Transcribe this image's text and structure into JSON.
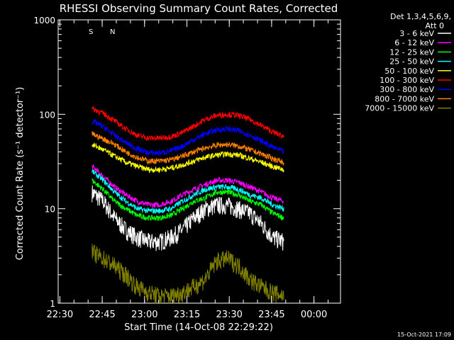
{
  "chart_data": {
    "type": "line",
    "title": "RHESSI Observing Summary Count Rates, Corrected",
    "xlabel": "Start Time (14-Oct-08 22:29:22)",
    "ylabel": "Corrected Count Rate (s⁻¹ detector⁻¹)",
    "x_unit": "minutes after 22:29:22",
    "xlim": [
      0,
      100
    ],
    "ylim": [
      1,
      1000
    ],
    "y_scale": "log",
    "x_ticks": [
      {
        "t": 0.6,
        "label": "22:30"
      },
      {
        "t": 15.6,
        "label": "22:45"
      },
      {
        "t": 30.6,
        "label": "23:00"
      },
      {
        "t": 45.6,
        "label": "23:15"
      },
      {
        "t": 60.6,
        "label": "23:30"
      },
      {
        "t": 75.6,
        "label": "23:45"
      },
      {
        "t": 90.6,
        "label": "00:00"
      }
    ],
    "y_ticks": [
      {
        "v": 1,
        "label": "1"
      },
      {
        "v": 10,
        "label": "10"
      },
      {
        "v": 100,
        "label": "100"
      },
      {
        "v": 1000,
        "label": "1000"
      }
    ],
    "legend_header": [
      "Det 1,3,4,5,6,9,",
      "Att 0"
    ],
    "legend_position": "right-outside",
    "x": [
      12,
      16,
      20,
      24,
      28,
      32,
      36,
      40,
      44,
      48,
      52,
      56,
      60,
      64,
      68,
      72,
      76,
      80
    ],
    "series": [
      {
        "name": "3 - 6 keV",
        "color": "#ffffff",
        "values": [
          15,
          12,
          8,
          6,
          5,
          4.5,
          4.5,
          5,
          6,
          8,
          10,
          11,
          11,
          10,
          9,
          7,
          5,
          4.5
        ]
      },
      {
        "name": "6 - 12 keV",
        "color": "#ff00ff",
        "values": [
          28,
          22,
          17,
          14,
          12,
          11,
          11,
          12,
          14,
          16,
          18,
          20,
          20,
          19,
          17,
          15,
          13,
          12
        ]
      },
      {
        "name": "12 - 25 keV",
        "color": "#00ff00",
        "values": [
          20,
          16,
          12,
          10,
          8.5,
          8,
          8,
          8.5,
          10,
          12,
          13,
          15,
          15,
          14,
          12,
          11,
          9,
          8
        ]
      },
      {
        "name": "25 - 50 keV",
        "color": "#00ffff",
        "values": [
          25,
          20,
          15,
          12,
          10,
          9.5,
          9.5,
          10,
          12,
          14,
          16,
          17,
          17,
          16,
          14,
          13,
          11,
          10
        ]
      },
      {
        "name": "50 - 100 keV",
        "color": "#ffff00",
        "values": [
          48,
          42,
          36,
          31,
          28,
          26,
          26,
          27,
          29,
          32,
          35,
          37,
          38,
          37,
          34,
          31,
          28,
          26
        ]
      },
      {
        "name": "100 - 300 keV",
        "color": "#ff0000",
        "values": [
          115,
          102,
          85,
          70,
          60,
          56,
          56,
          58,
          64,
          75,
          88,
          97,
          100,
          97,
          88,
          76,
          65,
          58
        ]
      },
      {
        "name": "300 - 800 keV",
        "color": "#0000ff",
        "values": [
          85,
          74,
          60,
          50,
          43,
          39,
          39,
          41,
          46,
          54,
          62,
          68,
          70,
          67,
          60,
          52,
          45,
          40
        ]
      },
      {
        "name": "800 - 7000 keV",
        "color": "#ff8000",
        "values": [
          62,
          55,
          48,
          40,
          35,
          32,
          32,
          33,
          36,
          40,
          44,
          47,
          48,
          46,
          42,
          38,
          34,
          31
        ]
      },
      {
        "name": "7000 - 15000 keV",
        "color": "#808000",
        "values": [
          3.5,
          3,
          2.5,
          2,
          1.5,
          1.3,
          1.2,
          1.2,
          1.3,
          1.5,
          1.8,
          2.8,
          3,
          2.5,
          1.8,
          1.5,
          1.3,
          1.2
        ]
      }
    ],
    "annotations": [
      {
        "label": "S",
        "color": "#ff8000"
      },
      {
        "label": "N",
        "color": "#00ffff"
      }
    ],
    "footer_timestamp": "15-Oct-2021 17:09"
  }
}
